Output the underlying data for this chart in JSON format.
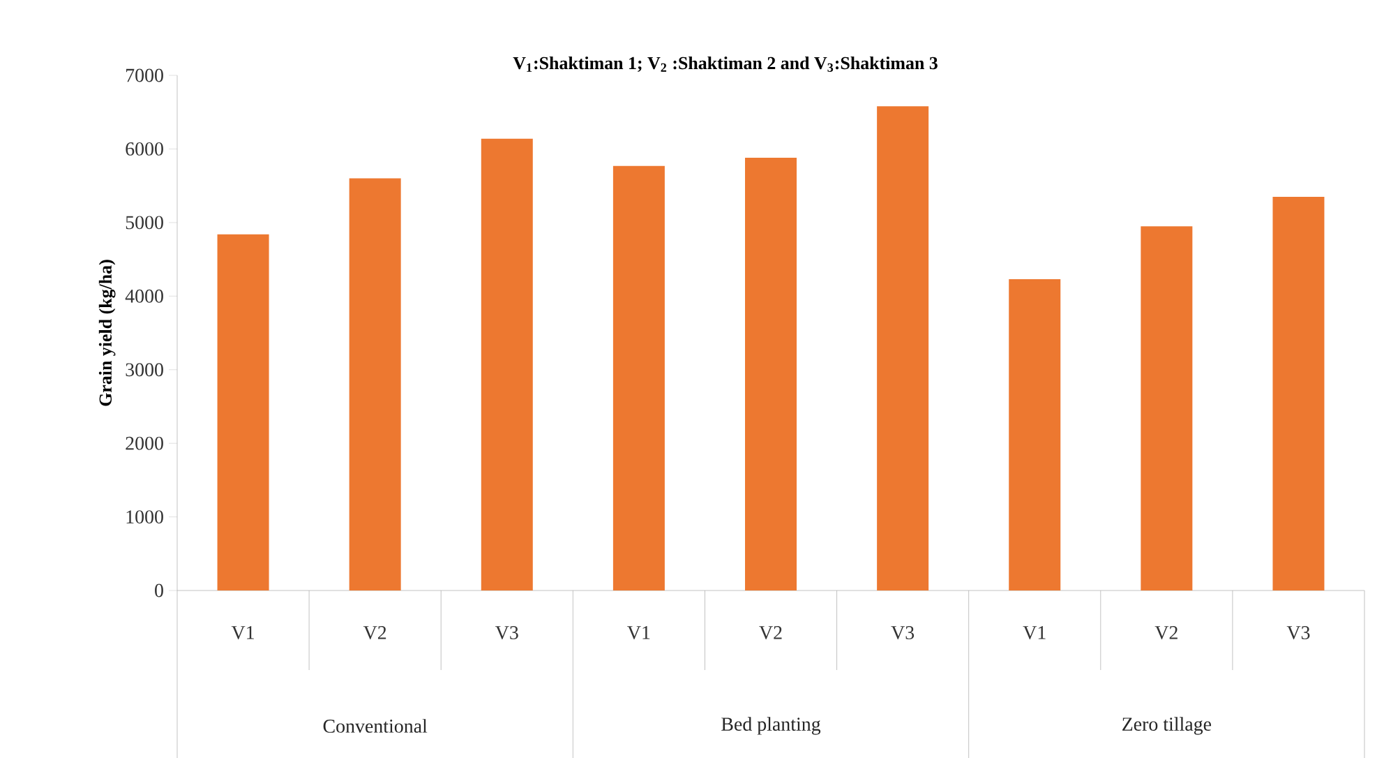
{
  "chart_data": {
    "type": "bar",
    "title": "V$_{1}$:Shaktiman 1; V$_{2}$ :Shaktiman 2 and V$_{3}$:Shaktiman 3",
    "ylabel": "Grain yield (kg/ha)",
    "categories": [
      "V1",
      "V2",
      "V3",
      "V1",
      "V2",
      "V3",
      "V1",
      "V2",
      "V3"
    ],
    "values": [
      4840,
      5600,
      6140,
      5770,
      5880,
      6580,
      4230,
      4950,
      5350
    ],
    "color": "#ed7830",
    "ylim": [
      0,
      7000
    ],
    "yticks": [
      0,
      1000,
      2000,
      3000,
      4000,
      5000,
      6000,
      7000
    ],
    "annotations": [
      "Conventional",
      "Bed planting",
      "Zero tillage"
    ]
  }
}
